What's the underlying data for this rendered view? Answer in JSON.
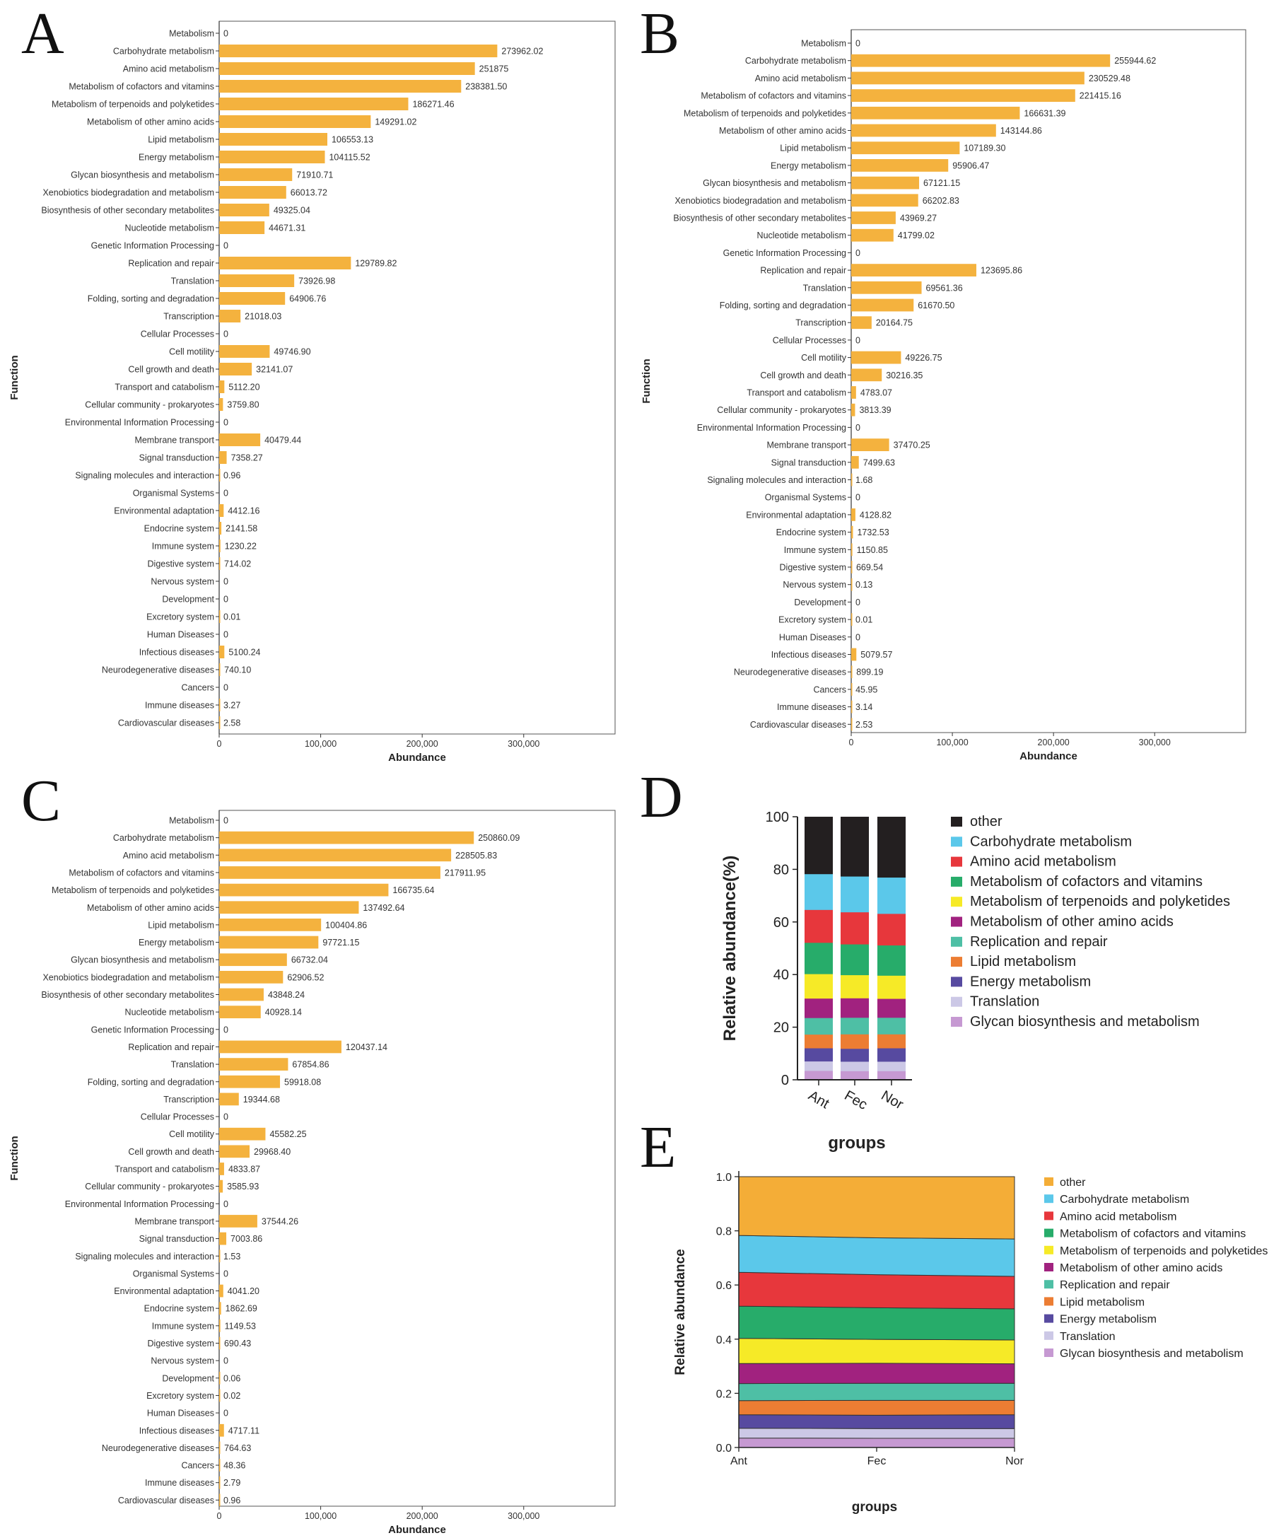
{
  "colors": {
    "bar": "#f4b23e",
    "frame": "#333333",
    "D_series": [
      "#231f20",
      "#5bc8ea",
      "#e7373c",
      "#27ac6a",
      "#f6ea27",
      "#a1227f",
      "#4ebfa5",
      "#ec7d33",
      "#574aa0",
      "#ccc8e6",
      "#c699d2"
    ],
    "E_series": [
      "#f4ad37",
      "#5bc8ea",
      "#e7373c",
      "#27ac6a",
      "#f6ea27",
      "#a1227f",
      "#4ebfa5",
      "#ec7d33",
      "#574aa0",
      "#ccc8e6",
      "#c699d2"
    ]
  },
  "chart_data": [
    {
      "panel": "A",
      "type": "bar",
      "orientation": "horizontal",
      "xlabel": "Abundance",
      "ylabel": "Function",
      "xlim": [
        0,
        390000
      ],
      "xticks": [
        "0",
        "100,000",
        "200,000",
        "300,000"
      ],
      "xtick_values": [
        0,
        100000,
        200000,
        300000
      ],
      "categories": [
        "Metabolism",
        "Carbohydrate metabolism",
        "Amino acid metabolism",
        "Metabolism of cofactors and vitamins",
        "Metabolism of terpenoids and polyketides",
        "Metabolism of other amino acids",
        "Lipid metabolism",
        "Energy metabolism",
        "Glycan biosynthesis and metabolism",
        "Xenobiotics biodegradation and metabolism",
        "Biosynthesis of other secondary metabolites",
        "Nucleotide metabolism",
        "Genetic Information Processing",
        "Replication and repair",
        "Translation",
        "Folding, sorting and degradation",
        "Transcription",
        "Cellular Processes",
        "Cell motility",
        "Cell growth and death",
        "Transport and catabolism",
        "Cellular community - prokaryotes",
        "Environmental Information Processing",
        "Membrane transport",
        "Signal transduction",
        "Signaling molecules and interaction",
        "Organismal Systems",
        "Environmental adaptation",
        "Endocrine system",
        "Immune system",
        "Digestive system",
        "Nervous system",
        "Development",
        "Excretory system",
        "Human Diseases",
        "Infectious diseases",
        "Neurodegenerative diseases",
        "Cancers",
        "Immune diseases",
        "Cardiovascular diseases"
      ],
      "values": [
        0,
        273962.02,
        251875,
        238381.5,
        186271.46,
        149291.02,
        106553.13,
        104115.52,
        71910.71,
        66013.72,
        49325.04,
        44671.31,
        0,
        129789.82,
        73926.98,
        64906.76,
        21018.03,
        0,
        49746.9,
        32141.07,
        5112.2,
        3759.8,
        0,
        40479.44,
        7358.27,
        0.96,
        0,
        4412.16,
        2141.58,
        1230.22,
        714.02,
        0,
        0,
        0.01,
        0,
        5100.24,
        740.1,
        0,
        3.27,
        2.58
      ],
      "value_labels": [
        "0",
        "273962.02",
        "251875",
        "238381.50",
        "186271.46",
        "149291.02",
        "106553.13",
        "104115.52",
        "71910.71",
        "66013.72",
        "49325.04",
        "44671.31",
        "0",
        "129789.82",
        "73926.98",
        "64906.76",
        "21018.03",
        "0",
        "49746.90",
        "32141.07",
        "5112.20",
        "3759.80",
        "0",
        "40479.44",
        "7358.27",
        "0.96",
        "0",
        "4412.16",
        "2141.58",
        "1230.22",
        "714.02",
        "0",
        "0",
        "0.01",
        "0",
        "5100.24",
        "740.10",
        "0",
        "3.27",
        "2.58"
      ]
    },
    {
      "panel": "B",
      "type": "bar",
      "orientation": "horizontal",
      "xlabel": "Abundance",
      "ylabel": "Function",
      "xlim": [
        0,
        390000
      ],
      "xticks": [
        "0",
        "100,000",
        "200,000",
        "300,000"
      ],
      "xtick_values": [
        0,
        100000,
        200000,
        300000
      ],
      "categories": [
        "Metabolism",
        "Carbohydrate metabolism",
        "Amino acid metabolism",
        "Metabolism of cofactors and vitamins",
        "Metabolism of terpenoids and polyketides",
        "Metabolism of other amino acids",
        "Lipid metabolism",
        "Energy metabolism",
        "Glycan biosynthesis and metabolism",
        "Xenobiotics biodegradation and metabolism",
        "Biosynthesis of other secondary metabolites",
        "Nucleotide metabolism",
        "Genetic Information Processing",
        "Replication and repair",
        "Translation",
        "Folding, sorting and degradation",
        "Transcription",
        "Cellular Processes",
        "Cell motility",
        "Cell growth and death",
        "Transport and catabolism",
        "Cellular community - prokaryotes",
        "Environmental Information Processing",
        "Membrane transport",
        "Signal transduction",
        "Signaling molecules and interaction",
        "Organismal Systems",
        "Environmental adaptation",
        "Endocrine system",
        "Immune system",
        "Digestive system",
        "Nervous system",
        "Development",
        "Excretory system",
        "Human Diseases",
        "Infectious diseases",
        "Neurodegenerative diseases",
        "Cancers",
        "Immune diseases",
        "Cardiovascular diseases"
      ],
      "values": [
        0,
        255944.62,
        230529.48,
        221415.16,
        166631.39,
        143144.86,
        107189.3,
        95906.47,
        67121.15,
        66202.83,
        43969.27,
        41799.02,
        0,
        123695.86,
        69561.36,
        61670.5,
        20164.75,
        0,
        49226.75,
        30216.35,
        4783.07,
        3813.39,
        0,
        37470.25,
        7499.63,
        1.68,
        0,
        4128.82,
        1732.53,
        1150.85,
        669.54,
        0.13,
        0,
        0.01,
        0,
        5079.57,
        899.19,
        45.95,
        3.14,
        2.53
      ],
      "value_labels": [
        "0",
        "255944.62",
        "230529.48",
        "221415.16",
        "166631.39",
        "143144.86",
        "107189.30",
        "95906.47",
        "67121.15",
        "66202.83",
        "43969.27",
        "41799.02",
        "0",
        "123695.86",
        "69561.36",
        "61670.50",
        "20164.75",
        "0",
        "49226.75",
        "30216.35",
        "4783.07",
        "3813.39",
        "0",
        "37470.25",
        "7499.63",
        "1.68",
        "0",
        "4128.82",
        "1732.53",
        "1150.85",
        "669.54",
        "0.13",
        "0",
        "0.01",
        "0",
        "5079.57",
        "899.19",
        "45.95",
        "3.14",
        "2.53"
      ]
    },
    {
      "panel": "C",
      "type": "bar",
      "orientation": "horizontal",
      "xlabel": "Abundance",
      "ylabel": "Function",
      "xlim": [
        0,
        390000
      ],
      "xticks": [
        "0",
        "100,000",
        "200,000",
        "300,000"
      ],
      "xtick_values": [
        0,
        100000,
        200000,
        300000
      ],
      "categories": [
        "Metabolism",
        "Carbohydrate metabolism",
        "Amino acid metabolism",
        "Metabolism of cofactors and vitamins",
        "Metabolism of terpenoids and polyketides",
        "Metabolism of other amino acids",
        "Lipid metabolism",
        "Energy metabolism",
        "Glycan biosynthesis and metabolism",
        "Xenobiotics biodegradation and metabolism",
        "Biosynthesis of other secondary metabolites",
        "Nucleotide metabolism",
        "Genetic Information Processing",
        "Replication and repair",
        "Translation",
        "Folding, sorting and degradation",
        "Transcription",
        "Cellular Processes",
        "Cell motility",
        "Cell growth and death",
        "Transport and catabolism",
        "Cellular community - prokaryotes",
        "Environmental Information Processing",
        "Membrane transport",
        "Signal transduction",
        "Signaling molecules and interaction",
        "Organismal Systems",
        "Environmental adaptation",
        "Endocrine system",
        "Immune system",
        "Digestive system",
        "Nervous system",
        "Development",
        "Excretory system",
        "Human Diseases",
        "Infectious diseases",
        "Neurodegenerative diseases",
        "Cancers",
        "Immune diseases",
        "Cardiovascular diseases"
      ],
      "values": [
        0,
        250860.09,
        228505.83,
        217911.95,
        166735.64,
        137492.64,
        100404.86,
        97721.15,
        66732.04,
        62906.52,
        43848.24,
        40928.14,
        0,
        120437.14,
        67854.86,
        59918.08,
        19344.68,
        0,
        45582.25,
        29968.4,
        4833.87,
        3585.93,
        0,
        37544.26,
        7003.86,
        1.53,
        0,
        4041.2,
        1862.69,
        1149.53,
        690.43,
        0,
        0.06,
        0.02,
        0,
        4717.11,
        764.63,
        48.36,
        2.79,
        0.96
      ],
      "value_labels": [
        "0",
        "250860.09",
        "228505.83",
        "217911.95",
        "166735.64",
        "137492.64",
        "100404.86",
        "97721.15",
        "66732.04",
        "62906.52",
        "43848.24",
        "40928.14",
        "0",
        "120437.14",
        "67854.86",
        "59918.08",
        "19344.68",
        "0",
        "45582.25",
        "29968.40",
        "4833.87",
        "3585.93",
        "0",
        "37544.26",
        "7003.86",
        "1.53",
        "0",
        "4041.20",
        "1862.69",
        "1149.53",
        "690.43",
        "0",
        "0.06",
        "0.02",
        "0",
        "4717.11",
        "764.63",
        "48.36",
        "2.79",
        "0.96"
      ]
    },
    {
      "panel": "D",
      "type": "bar",
      "stacked": true,
      "xlabel": "groups",
      "ylabel": "Relative abundance(%)",
      "ylim": [
        0,
        100
      ],
      "yticks": [
        "0",
        "20",
        "40",
        "60",
        "80",
        "100"
      ],
      "ytick_values": [
        0,
        20,
        40,
        60,
        80,
        100
      ],
      "categories": [
        "Ant",
        "Fec",
        "Nor"
      ],
      "legend": [
        "other",
        "Carbohydrate metabolism",
        "Amino acid metabolism",
        "Metabolism of cofactors and vitamins",
        "Metabolism of terpenoids and polyketides",
        "Metabolism of other amino acids",
        "Replication and repair",
        "Lipid metabolism",
        "Energy metabolism",
        "Translation",
        "Glycan biosynthesis and metabolism"
      ],
      "series": [
        {
          "name": "Glycan biosynthesis and metabolism",
          "values": [
            3.5,
            3.4,
            3.4
          ]
        },
        {
          "name": "Translation",
          "values": [
            3.6,
            3.6,
            3.6
          ]
        },
        {
          "name": "Energy metabolism",
          "values": [
            5.0,
            4.9,
            5.1
          ]
        },
        {
          "name": "Lipid metabolism",
          "values": [
            5.2,
            5.5,
            5.3
          ]
        },
        {
          "name": "Replication and repair",
          "values": [
            6.3,
            6.3,
            6.3
          ]
        },
        {
          "name": "Metabolism of other amino acids",
          "values": [
            7.4,
            7.4,
            7.2
          ]
        },
        {
          "name": "Metabolism of terpenoids and polyketides",
          "values": [
            9.3,
            8.8,
            8.8
          ]
        },
        {
          "name": "Metabolism of cofactors and vitamins",
          "values": [
            11.9,
            11.7,
            11.5
          ]
        },
        {
          "name": "Amino acid metabolism",
          "values": [
            12.5,
            12.2,
            12.0
          ]
        },
        {
          "name": "Carbohydrate metabolism",
          "values": [
            13.6,
            13.6,
            13.8
          ]
        },
        {
          "name": "other",
          "values": [
            21.7,
            22.6,
            23.0
          ]
        }
      ]
    },
    {
      "panel": "E",
      "type": "area",
      "stacked": true,
      "xlabel": "groups",
      "ylabel": "Relative abundance",
      "ylim": [
        0,
        1.0
      ],
      "yticks": [
        "0.0",
        "0.2",
        "0.4",
        "0.6",
        "0.8",
        "1.0"
      ],
      "ytick_values": [
        0,
        0.2,
        0.4,
        0.6,
        0.8,
        1.0
      ],
      "categories": [
        "Ant",
        "Fec",
        "Nor"
      ],
      "legend": [
        "other",
        "Carbohydrate metabolism",
        "Amino acid metabolism",
        "Metabolism of cofactors and vitamins",
        "Metabolism of terpenoids and polyketides",
        "Metabolism of other amino acids",
        "Replication and repair",
        "Lipid metabolism",
        "Energy metabolism",
        "Translation",
        "Glycan biosynthesis and metabolism"
      ],
      "series": [
        {
          "name": "Glycan biosynthesis and metabolism",
          "values": [
            0.035,
            0.034,
            0.034
          ]
        },
        {
          "name": "Translation",
          "values": [
            0.036,
            0.036,
            0.036
          ]
        },
        {
          "name": "Energy metabolism",
          "values": [
            0.05,
            0.049,
            0.051
          ]
        },
        {
          "name": "Lipid metabolism",
          "values": [
            0.052,
            0.055,
            0.053
          ]
        },
        {
          "name": "Replication and repair",
          "values": [
            0.063,
            0.063,
            0.063
          ]
        },
        {
          "name": "Metabolism of other amino acids",
          "values": [
            0.074,
            0.074,
            0.072
          ]
        },
        {
          "name": "Metabolism of terpenoids and polyketides",
          "values": [
            0.093,
            0.088,
            0.088
          ]
        },
        {
          "name": "Metabolism of cofactors and vitamins",
          "values": [
            0.119,
            0.117,
            0.115
          ]
        },
        {
          "name": "Amino acid metabolism",
          "values": [
            0.125,
            0.122,
            0.12
          ]
        },
        {
          "name": "Carbohydrate metabolism",
          "values": [
            0.136,
            0.136,
            0.138
          ]
        },
        {
          "name": "other",
          "values": [
            0.217,
            0.226,
            0.23
          ]
        }
      ]
    }
  ]
}
